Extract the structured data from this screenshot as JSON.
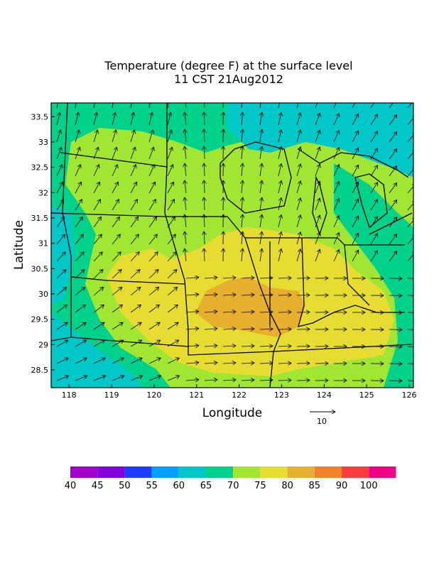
{
  "map": {
    "title": "Temperature (degree F) at the surface level",
    "subtitle": "11 CST 21Aug2012",
    "x_label": "Longitude",
    "y_label": "Latitude",
    "xlim": [
      117.58,
      126.1
    ],
    "ylim": [
      28.15,
      33.77
    ],
    "xticks": [
      118,
      119,
      120,
      121,
      122,
      123,
      124,
      125,
      126
    ],
    "yticks": [
      28.5,
      29,
      29.5,
      30,
      30.5,
      31,
      31.5,
      32,
      32.5,
      33,
      33.5
    ],
    "vector_reference": 10,
    "colorbar": {
      "labels": [
        40,
        45,
        50,
        55,
        60,
        65,
        70,
        75,
        80,
        85,
        90,
        100
      ],
      "colors": [
        "#a000c8",
        "#8200dc",
        "#1e3cff",
        "#00a0ff",
        "#00c8c8",
        "#00d28c",
        "#a0e632",
        "#e6dc32",
        "#e6af2d",
        "#f08228",
        "#fa3c3c",
        "#f00082"
      ]
    }
  }
}
